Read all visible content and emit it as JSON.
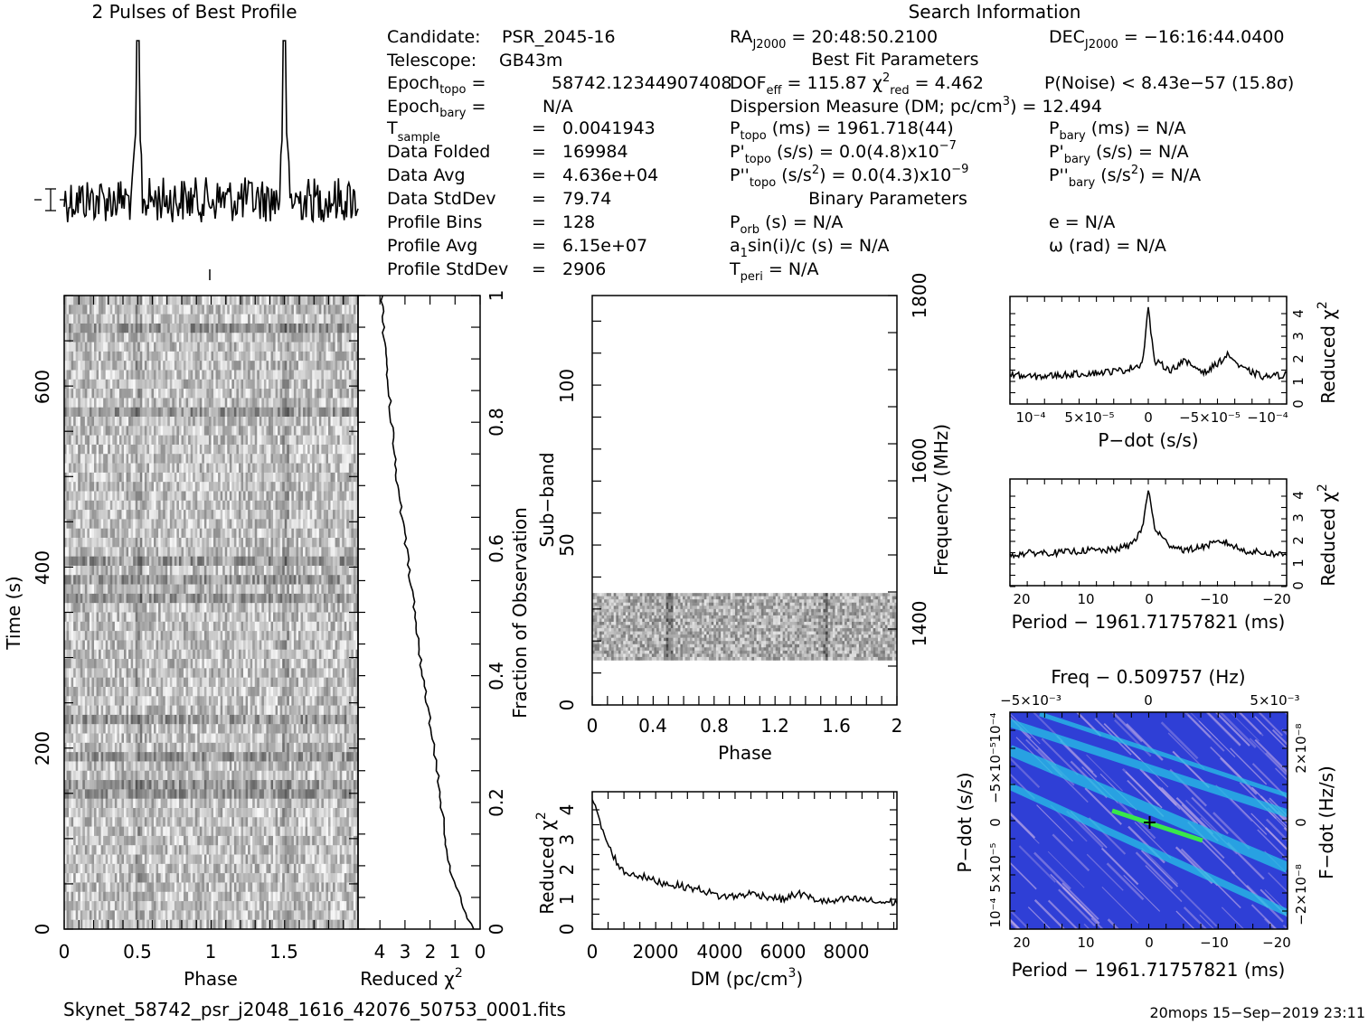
{
  "header": {
    "profile_title": "2 Pulses of Best Profile",
    "search_title": "Search Information",
    "best_fit_title": "Best Fit Parameters",
    "binary_title": "Binary Parameters"
  },
  "info_left": [
    "Candidate:  PSR_2045-16",
    "Telescope:  GB43m",
    "Epoch_topo = 58742.12344907408",
    "Epoch_bary = N/A",
    "T_sample = 0.0041943",
    "Data Folded = 169984",
    "Data Avg = 4.636e+04",
    "Data StdDev = 79.74",
    "Profile Bins = 128",
    "Profile Avg = 6.15e+07",
    "Profile StdDev = 2906"
  ],
  "info_left_labels": [
    "Candidate:",
    "Telescope:",
    "Epoch",
    "Epoch",
    "T",
    "Data Folded",
    "Data Avg",
    "Data StdDev",
    "Profile Bins",
    "Profile Avg",
    "Profile StdDev"
  ],
  "info_left_values": [
    "PSR_2045-16",
    "GB43m",
    "58742.12344907408",
    "N/A",
    "0.0041943",
    "169984",
    "4.636e+04",
    "79.74",
    "128",
    "6.15e+07",
    "2906"
  ],
  "search": {
    "ra": "20:48:50.2100",
    "dec": "−16:16:44.0400",
    "dof_eff": "115.87",
    "chi2_red": "4.462",
    "p_noise": "8.43e−57",
    "sigma": "(15.8σ)",
    "dm": "12.494",
    "p_topo": "1961.718(44)",
    "pdot_topo": "0.0(4.8)x10",
    "pdot_exp": "−7",
    "pddot_topo": "0.0(4.3)x10",
    "pddot_exp": "−9",
    "p_bary": "N/A",
    "pdot_bary": "N/A",
    "pddot_bary": "N/A",
    "p_orb": "N/A",
    "a1sini": "N/A",
    "t_peri": "N/A",
    "e": "N/A",
    "omega": "N/A"
  },
  "footer": {
    "filename": "Skynet_58742_psr_j2048_1616_42076_50753_0001.fits",
    "stamp": "20mops 15−Sep−2019 23:11"
  },
  "axes": {
    "phase_label": "Phase",
    "time_label": "Time (s)",
    "redchi_label": "Reduced χ",
    "fraction_label": "Fraction of Observation",
    "subband_label": "Sub−band",
    "frequency_label": "Frequency (MHz)",
    "dm_label": "DM (pc/cm",
    "pdot_label": "P−dot (s/s)",
    "period_label": "Period − 1961.71757821 (ms)",
    "freq_label": "Freq − 0.509757 (Hz)",
    "fdot_label": "F−dot (Hz/s)"
  },
  "colors": {
    "ink": "#000000",
    "ppdot_bg": "#2f3fd6",
    "ppdot_streak": "#26c2e6",
    "ppdot_peak": "#39e84a"
  },
  "chart_data": [
    {
      "type": "line",
      "title": "2 Pulses of Best Profile",
      "x": [
        0,
        0.5,
        1.0,
        1.5,
        2.0
      ],
      "peaks_phase": [
        0.5,
        1.5
      ],
      "xlim": [
        0,
        2
      ],
      "note_marks": [
        "error bar at left"
      ]
    },
    {
      "type": "heatmap",
      "name": "time-phase",
      "xlabel": "Phase",
      "ylabel": "Time (s)",
      "xlim": [
        0,
        2
      ],
      "ylim": [
        0,
        700
      ],
      "xticks": [
        "0",
        "0.5",
        "1",
        "1.5"
      ],
      "yticks": [
        "0",
        "200",
        "400",
        "600"
      ]
    },
    {
      "type": "line",
      "name": "reduced-chi2-vs-fraction",
      "xlabel": "Reduced χ2",
      "ylabel": "Fraction of Observation",
      "xticks": [
        "4",
        "3",
        "2",
        "1",
        "0"
      ],
      "yticks": [
        "0",
        "0.2",
        "0.4",
        "0.6",
        "0.8",
        "1"
      ],
      "x": [
        0.3,
        0.8,
        1.1,
        1.35,
        1.55,
        1.9,
        2.3,
        2.6,
        2.95,
        3.3,
        3.55,
        3.7,
        3.85,
        3.95
      ],
      "y": [
        0,
        0.05,
        0.08,
        0.13,
        0.2,
        0.3,
        0.4,
        0.5,
        0.6,
        0.7,
        0.8,
        0.88,
        0.94,
        1.0
      ]
    },
    {
      "type": "heatmap",
      "name": "subband-phase",
      "xlabel": "Phase",
      "ylabel": "Sub−band",
      "y2label": "Frequency (MHz)",
      "xlim": [
        0,
        2
      ],
      "ylim": [
        0,
        128
      ],
      "xticks": [
        "0",
        "0.4",
        "0.8",
        "1.2",
        "1.6",
        "2"
      ],
      "yticks": [
        "0",
        "50",
        "100"
      ],
      "y2ticks": [
        "1400",
        "1600",
        "1800"
      ],
      "data_band": [
        14,
        35
      ]
    },
    {
      "type": "line",
      "name": "reduced-chi2-vs-dm",
      "xlabel": "DM (pc/cm3)",
      "ylabel": "Reduced χ2",
      "xlim": [
        0,
        9600
      ],
      "ylim": [
        0,
        4.6
      ],
      "xticks": [
        "0",
        "2000",
        "4000",
        "6000",
        "8000"
      ],
      "yticks": [
        "0",
        "1",
        "2",
        "3",
        "4"
      ],
      "x": [
        0,
        200,
        500,
        800,
        1000,
        1500,
        2000,
        2500,
        3000,
        3500,
        4000,
        4500,
        5000,
        5500,
        6000,
        6500,
        7000,
        7500,
        8000,
        8500,
        9000,
        9600
      ],
      "y": [
        4.4,
        3.7,
        2.8,
        2.2,
        1.9,
        1.8,
        1.6,
        1.5,
        1.4,
        1.3,
        1.1,
        1.1,
        1.2,
        1.1,
        1.0,
        1.2,
        1.0,
        0.9,
        1.0,
        1.0,
        0.9,
        0.9
      ]
    },
    {
      "type": "line",
      "name": "reduced-chi2-vs-pdot",
      "xlabel": "P−dot (s/s)",
      "ylabel": "Reduced χ2",
      "xticks": [
        "10⁻⁴",
        "5×10⁻⁵",
        "0",
        "−5×10⁻⁵",
        "−10⁻⁴"
      ],
      "yticks": [
        "0",
        "1",
        "2",
        "3",
        "4"
      ],
      "x": [
        0.00012,
        0.0001,
        7e-05,
        4e-05,
        2e-05,
        5e-06,
        0,
        -5e-06,
        -2e-05,
        -3e-05,
        -5e-05,
        -6e-05,
        -7e-05,
        -8e-05,
        -0.0001,
        -0.00012
      ],
      "y": [
        1.3,
        1.2,
        1.3,
        1.4,
        1.5,
        1.8,
        4.3,
        1.9,
        1.5,
        1.9,
        1.4,
        1.8,
        2.2,
        1.6,
        1.2,
        1.3
      ]
    },
    {
      "type": "line",
      "name": "reduced-chi2-vs-period",
      "xlabel": "Period − 1961.71757821 (ms)",
      "ylabel": "Reduced χ2",
      "xticks": [
        "20",
        "10",
        "0",
        "−10",
        "−20"
      ],
      "yticks": [
        "0",
        "1",
        "2",
        "3",
        "4"
      ],
      "x": [
        22,
        18,
        14,
        10,
        6,
        3,
        1,
        0,
        -1,
        -3,
        -6,
        -9,
        -12,
        -15,
        -18,
        -22
      ],
      "y": [
        1.4,
        1.5,
        1.5,
        1.6,
        1.6,
        1.8,
        2.5,
        4.3,
        2.6,
        1.9,
        1.6,
        1.8,
        2.0,
        1.6,
        1.5,
        1.4
      ]
    },
    {
      "type": "heatmap",
      "name": "period-pdot-plane",
      "title": "Freq − 0.509757 (Hz)",
      "xlabel": "Period − 1961.71757821 (ms)",
      "ylabel": "P−dot (s/s)",
      "y2label": "F−dot (Hz/s)",
      "xticks": [
        "20",
        "10",
        "0",
        "−10",
        "−20"
      ],
      "x2ticks": [
        "−5×10⁻³",
        "0",
        "5×10⁻³"
      ],
      "yticks": [
        "10⁻⁴",
        "5×10⁻⁵",
        "0",
        "−5×10⁻⁵",
        "10⁻⁴"
      ],
      "y2ticks": [
        "2×10⁻⁸",
        "0",
        "−2×10⁻⁸"
      ],
      "peak": [
        0,
        0
      ]
    }
  ]
}
